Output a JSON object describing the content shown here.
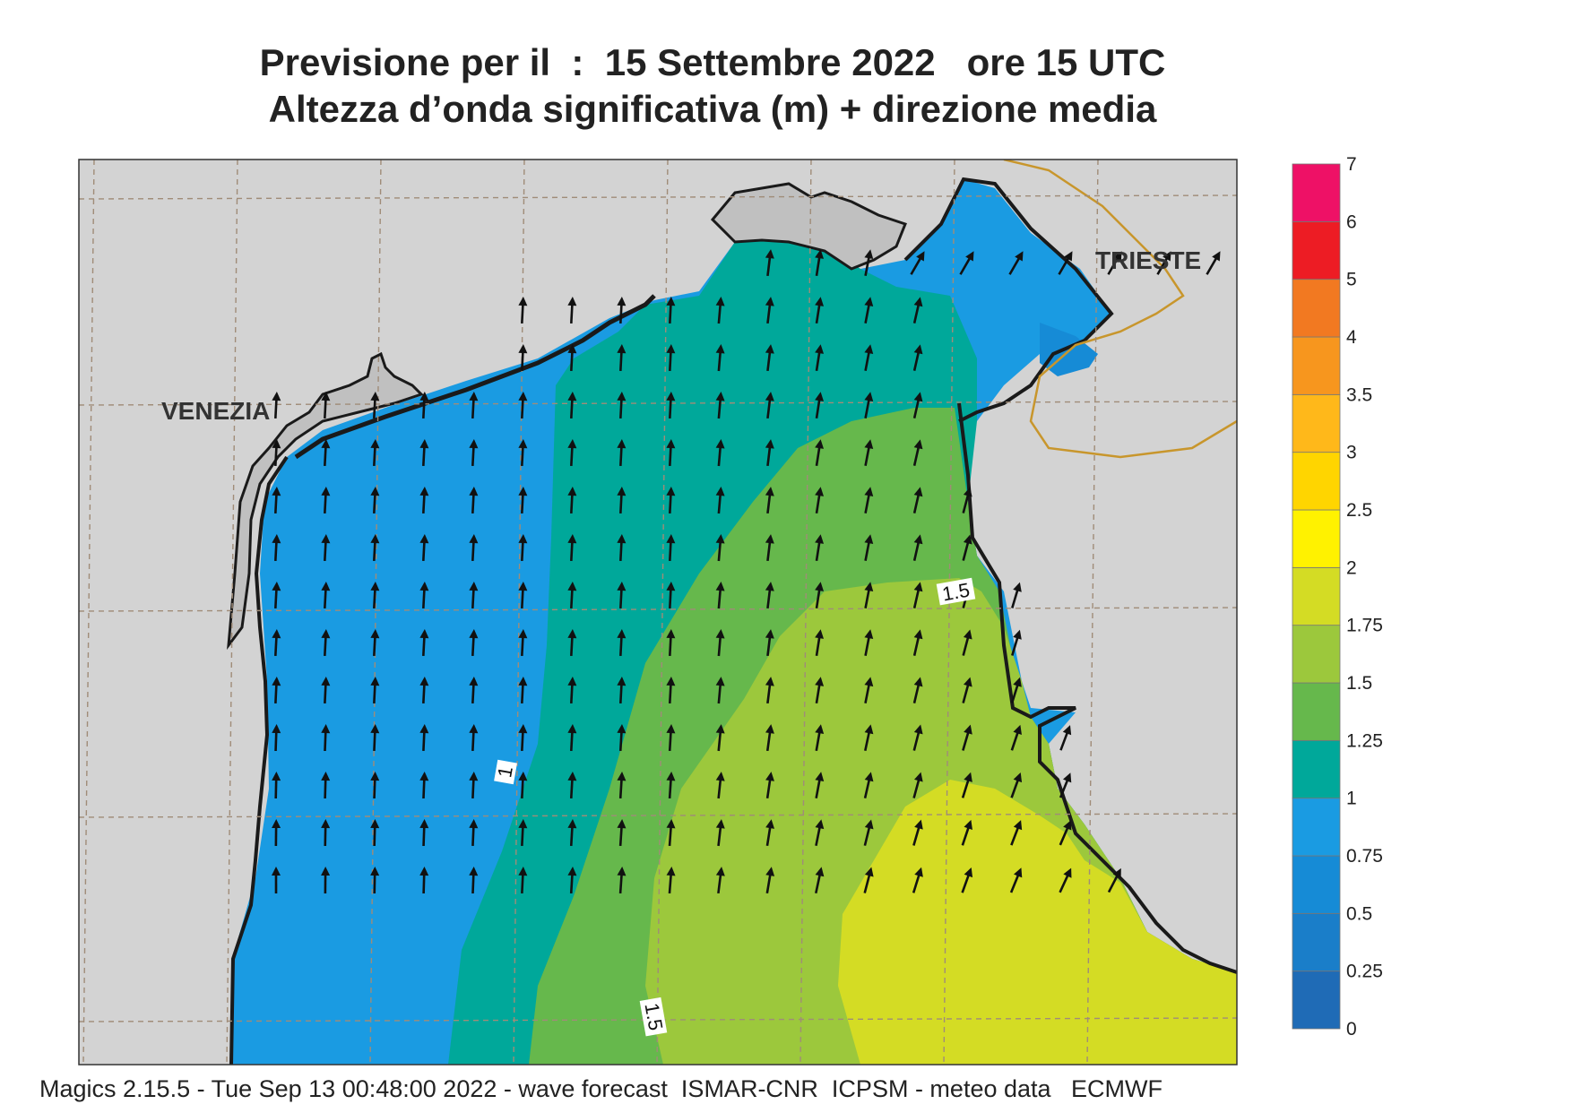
{
  "title": {
    "line1": "Previsione per il  :  15 Settembre 2022   ore 15 UTC",
    "line2": "Altezza d’onda significativa (m) + direzione media"
  },
  "map": {
    "cities": [
      {
        "name": "VENEZIA"
      },
      {
        "name": "TRIESTE"
      }
    ],
    "contour_labels": [
      "1",
      "1.5",
      "1.5"
    ],
    "colors": {
      "land": "#d3d3d3",
      "grid": "#a08c78",
      "coast": "#1a1a1a",
      "border": "#c8962c"
    }
  },
  "colorbar": {
    "levels": [
      "0",
      "0.25",
      "0.5",
      "0.75",
      "1",
      "1.25",
      "1.5",
      "1.75",
      "2",
      "2.5",
      "3",
      "3.5",
      "4",
      "5",
      "6",
      "7"
    ],
    "colors": [
      "#1f6bb6",
      "#1a7ec9",
      "#168bd6",
      "#1a9be2",
      "#00a89a",
      "#66b84c",
      "#9cc83c",
      "#d4dc24",
      "#fff200",
      "#ffd500",
      "#ffb81a",
      "#f7961e",
      "#f27921",
      "#ed1c24",
      "#ee1166"
    ]
  },
  "footer": "Magics 2.15.5 - Tue Sep 13 00:48:00 2022 - wave forecast  ISMAR-CNR  ICPSM - meteo data   ECMWF",
  "field": {
    "quantity": "Altezza d’onda significativa (m)",
    "unit": "m",
    "direction_hint": "mean direction toward N/NNE, veering to NE in the south-east",
    "wave_height_zones_m": [
      "0.5-0.75 in the Gulf of Trieste",
      "0.75-1 along the Venetian coast",
      "1-1.25 in the central-north basin",
      "1.25-1.5 central strip",
      "1.5-1.75 off Istria and south-east",
      "1.75-2 in the south-east corner"
    ]
  }
}
